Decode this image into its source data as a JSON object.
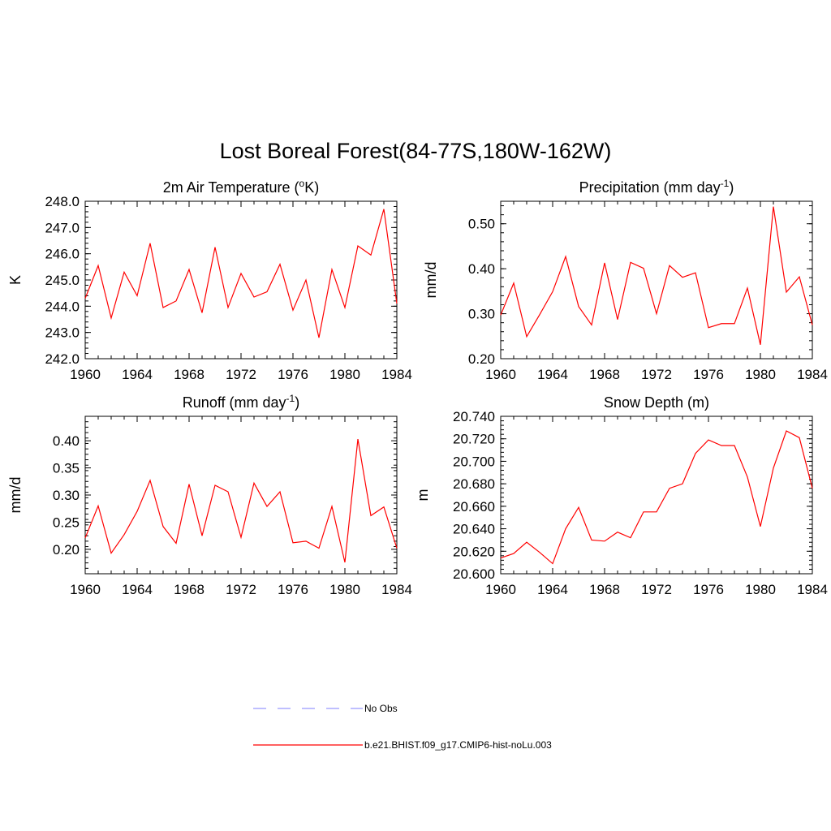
{
  "figure": {
    "title": "Lost Boreal Forest(84-77S,180W-162W)"
  },
  "colors": {
    "model_line": "#ff0000",
    "obs_line": "#9999ff",
    "axes": "#000000"
  },
  "legend": {
    "entries": [
      {
        "label": "No Obs",
        "style": "dashed",
        "color": "#9999ff"
      },
      {
        "label": "b.e21.BHIST.f09_g17.CMIP6-hist-noLu.003",
        "style": "solid",
        "color": "#ff0000"
      }
    ]
  },
  "chart_data": [
    {
      "type": "line",
      "title": "2m Air Temperature (",
      "title_sup": "o",
      "title_tail": "K)",
      "ylabel": "K",
      "xlim": [
        1960,
        1984
      ],
      "ylim": [
        242.0,
        248.0
      ],
      "xticks": [
        1960,
        1964,
        1968,
        1972,
        1976,
        1980,
        1984
      ],
      "yticks": [
        "242.0",
        "243.0",
        "244.0",
        "245.0",
        "246.0",
        "247.0",
        "248.0"
      ],
      "x": [
        1960,
        1961,
        1962,
        1963,
        1964,
        1965,
        1966,
        1967,
        1968,
        1969,
        1970,
        1971,
        1972,
        1973,
        1974,
        1975,
        1976,
        1977,
        1978,
        1979,
        1980,
        1981,
        1982,
        1983,
        1984
      ],
      "series": [
        {
          "name": "b.e21.BHIST.f09_g17.CMIP6-hist-noLu.003",
          "values": [
            244.3,
            245.55,
            243.55,
            245.3,
            244.4,
            246.4,
            243.95,
            244.2,
            245.4,
            243.75,
            246.25,
            243.95,
            245.25,
            244.35,
            244.55,
            245.6,
            243.85,
            245.0,
            242.8,
            245.4,
            243.95,
            246.3,
            245.95,
            247.7,
            244.1
          ]
        }
      ]
    },
    {
      "type": "line",
      "title": "Precipitation (mm day",
      "title_sup": "-1",
      "title_tail": ")",
      "ylabel": "mm/d",
      "xlim": [
        1960,
        1984
      ],
      "ylim": [
        0.2,
        0.55
      ],
      "xticks": [
        1960,
        1964,
        1968,
        1972,
        1976,
        1980,
        1984
      ],
      "yticks": [
        "0.20",
        "0.30",
        "0.40",
        "0.50"
      ],
      "x": [
        1960,
        1961,
        1962,
        1963,
        1964,
        1965,
        1966,
        1967,
        1968,
        1969,
        1970,
        1971,
        1972,
        1973,
        1974,
        1975,
        1976,
        1977,
        1978,
        1979,
        1980,
        1981,
        1982,
        1983,
        1984
      ],
      "series": [
        {
          "name": "b.e21.BHIST.f09_g17.CMIP6-hist-noLu.003",
          "values": [
            0.297,
            0.368,
            0.249,
            0.298,
            0.349,
            0.427,
            0.316,
            0.275,
            0.413,
            0.287,
            0.414,
            0.401,
            0.3,
            0.407,
            0.381,
            0.391,
            0.269,
            0.278,
            0.278,
            0.357,
            0.231,
            0.538,
            0.348,
            0.382,
            0.275
          ]
        }
      ]
    },
    {
      "type": "line",
      "title": "Runoff (mm day",
      "title_sup": "-1",
      "title_tail": ")",
      "ylabel": "mm/d",
      "xlim": [
        1960,
        1984
      ],
      "ylim": [
        0.155,
        0.445
      ],
      "xticks": [
        1960,
        1964,
        1968,
        1972,
        1976,
        1980,
        1984
      ],
      "yticks": [
        "0.20",
        "0.25",
        "0.30",
        "0.35",
        "0.40"
      ],
      "x": [
        1960,
        1961,
        1962,
        1963,
        1964,
        1965,
        1966,
        1967,
        1968,
        1969,
        1970,
        1971,
        1972,
        1973,
        1974,
        1975,
        1976,
        1977,
        1978,
        1979,
        1980,
        1981,
        1982,
        1983,
        1984
      ],
      "series": [
        {
          "name": "b.e21.BHIST.f09_g17.CMIP6-hist-noLu.003",
          "values": [
            0.221,
            0.28,
            0.193,
            0.227,
            0.27,
            0.327,
            0.242,
            0.211,
            0.32,
            0.225,
            0.318,
            0.306,
            0.222,
            0.322,
            0.279,
            0.306,
            0.212,
            0.215,
            0.202,
            0.279,
            0.176,
            0.403,
            0.262,
            0.278,
            0.202
          ]
        }
      ]
    },
    {
      "type": "line",
      "title": "Snow Depth (m)",
      "title_sup": "",
      "title_tail": "",
      "ylabel": "m",
      "xlim": [
        1960,
        1984
      ],
      "ylim": [
        20.6,
        20.74
      ],
      "xticks": [
        1960,
        1964,
        1968,
        1972,
        1976,
        1980,
        1984
      ],
      "yticks": [
        "20.600",
        "20.620",
        "20.640",
        "20.660",
        "20.680",
        "20.700",
        "20.720",
        "20.740"
      ],
      "x": [
        1960,
        1961,
        1962,
        1963,
        1964,
        1965,
        1966,
        1967,
        1968,
        1969,
        1970,
        1971,
        1972,
        1973,
        1974,
        1975,
        1976,
        1977,
        1978,
        1979,
        1980,
        1981,
        1982,
        1983,
        1984
      ],
      "series": [
        {
          "name": "b.e21.BHIST.f09_g17.CMIP6-hist-noLu.003",
          "values": [
            20.614,
            20.618,
            20.628,
            20.619,
            20.609,
            20.64,
            20.659,
            20.63,
            20.629,
            20.637,
            20.632,
            20.655,
            20.655,
            20.676,
            20.68,
            20.707,
            20.719,
            20.714,
            20.714,
            20.686,
            20.642,
            20.694,
            20.727,
            20.721,
            20.676
          ]
        }
      ]
    }
  ]
}
